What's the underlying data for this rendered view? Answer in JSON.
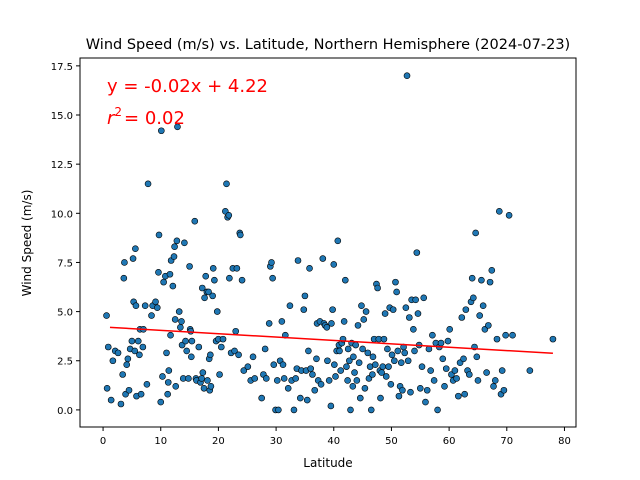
{
  "chart_data": {
    "type": "scatter",
    "title": "Wind Speed (m/s) vs. Latitude, Northern Hemisphere (2024-07-23)",
    "xlabel": "Latitude",
    "ylabel": "Wind Speed (m/s)",
    "xlim": [
      -4,
      82
    ],
    "ylim": [
      -0.87,
      17.9
    ],
    "x_ticks": [
      0,
      10,
      20,
      30,
      40,
      50,
      60,
      70,
      80
    ],
    "y_ticks": [
      0.0,
      2.5,
      5.0,
      7.5,
      10.0,
      12.5,
      15.0,
      17.5
    ],
    "x_tick_labels": [
      "0",
      "10",
      "20",
      "30",
      "40",
      "50",
      "60",
      "70",
      "80"
    ],
    "y_tick_labels": [
      "0.0",
      "2.5",
      "5.0",
      "7.5",
      "10.0",
      "12.5",
      "15.0",
      "17.5"
    ],
    "grid": false,
    "point_color": "#1f77b4",
    "point_edge_color": "#000000",
    "line_color": "#ff0000",
    "regression": {
      "equation": "y = -0.02x + 4.22",
      "r2_label": "r",
      "r2_sup": "2",
      "r2_value": "= 0.02",
      "slope": -0.0172,
      "intercept": 4.22,
      "x_range": [
        1.2,
        78.0
      ]
    },
    "points": [
      [
        0.6,
        4.8
      ],
      [
        0.7,
        1.1
      ],
      [
        0.9,
        3.2
      ],
      [
        1.4,
        0.5
      ],
      [
        1.7,
        2.5
      ],
      [
        2.1,
        3.0
      ],
      [
        2.6,
        2.9
      ],
      [
        3.1,
        0.3
      ],
      [
        3.4,
        1.8
      ],
      [
        3.6,
        6.7
      ],
      [
        3.7,
        7.5
      ],
      [
        3.9,
        0.8
      ],
      [
        4.1,
        2.3
      ],
      [
        4.3,
        2.6
      ],
      [
        4.5,
        1.0
      ],
      [
        4.7,
        3.1
      ],
      [
        5.0,
        3.5
      ],
      [
        5.2,
        7.7
      ],
      [
        5.3,
        5.5
      ],
      [
        5.5,
        3.0
      ],
      [
        5.6,
        8.2
      ],
      [
        5.7,
        5.3
      ],
      [
        5.8,
        0.7
      ],
      [
        6.1,
        3.5
      ],
      [
        6.3,
        2.8
      ],
      [
        6.4,
        4.1
      ],
      [
        6.6,
        0.8
      ],
      [
        6.9,
        3.2
      ],
      [
        7.0,
        4.1
      ],
      [
        7.3,
        5.3
      ],
      [
        7.6,
        1.3
      ],
      [
        7.8,
        11.5
      ],
      [
        8.4,
        4.8
      ],
      [
        8.6,
        5.3
      ],
      [
        9.1,
        5.5
      ],
      [
        9.4,
        5.2
      ],
      [
        9.6,
        7.0
      ],
      [
        9.7,
        8.9
      ],
      [
        10.0,
        0.4
      ],
      [
        10.1,
        14.2
      ],
      [
        10.3,
        1.7
      ],
      [
        10.5,
        6.5
      ],
      [
        10.8,
        6.8
      ],
      [
        11.0,
        2.9
      ],
      [
        11.2,
        0.8
      ],
      [
        11.3,
        1.4
      ],
      [
        11.4,
        2.0
      ],
      [
        11.6,
        6.9
      ],
      [
        11.7,
        3.8
      ],
      [
        11.8,
        7.6
      ],
      [
        12.1,
        6.3
      ],
      [
        12.3,
        7.8
      ],
      [
        12.4,
        8.3
      ],
      [
        12.5,
        4.6
      ],
      [
        12.6,
        1.2
      ],
      [
        12.8,
        8.6
      ],
      [
        12.9,
        14.4
      ],
      [
        13.2,
        5.0
      ],
      [
        13.4,
        4.2
      ],
      [
        13.6,
        4.5
      ],
      [
        13.7,
        3.3
      ],
      [
        13.9,
        1.6
      ],
      [
        14.1,
        8.5
      ],
      [
        14.3,
        3.5
      ],
      [
        14.5,
        3.0
      ],
      [
        14.8,
        1.6
      ],
      [
        15.0,
        7.3
      ],
      [
        15.1,
        4.1
      ],
      [
        15.2,
        4.0
      ],
      [
        15.3,
        2.7
      ],
      [
        15.4,
        3.5
      ],
      [
        15.9,
        9.6
      ],
      [
        16.1,
        1.6
      ],
      [
        16.2,
        1.5
      ],
      [
        16.6,
        3.2
      ],
      [
        16.9,
        1.4
      ],
      [
        17.1,
        1.6
      ],
      [
        17.2,
        6.2
      ],
      [
        17.3,
        1.9
      ],
      [
        17.5,
        1.1
      ],
      [
        17.6,
        5.7
      ],
      [
        17.8,
        6.8
      ],
      [
        18.0,
        6.0
      ],
      [
        18.1,
        1.5
      ],
      [
        18.3,
        6.0
      ],
      [
        18.4,
        2.6
      ],
      [
        18.5,
        1.0
      ],
      [
        18.6,
        2.8
      ],
      [
        18.7,
        1.2
      ],
      [
        19.0,
        5.8
      ],
      [
        19.1,
        7.2
      ],
      [
        19.3,
        6.6
      ],
      [
        19.6,
        3.5
      ],
      [
        19.8,
        5.0
      ],
      [
        20.0,
        3.6
      ],
      [
        20.2,
        1.8
      ],
      [
        20.5,
        3.2
      ],
      [
        20.8,
        3.6
      ],
      [
        21.2,
        10.1
      ],
      [
        21.4,
        11.5
      ],
      [
        21.6,
        9.8
      ],
      [
        21.8,
        9.9
      ],
      [
        21.9,
        6.7
      ],
      [
        22.2,
        2.9
      ],
      [
        22.5,
        7.2
      ],
      [
        22.8,
        3.0
      ],
      [
        23.0,
        4.0
      ],
      [
        23.2,
        7.2
      ],
      [
        23.5,
        2.8
      ],
      [
        23.7,
        9.0
      ],
      [
        23.8,
        8.9
      ],
      [
        24.1,
        6.6
      ],
      [
        24.4,
        2.0
      ],
      [
        25.1,
        2.2
      ],
      [
        25.6,
        1.5
      ],
      [
        26.0,
        2.7
      ],
      [
        26.3,
        1.6
      ],
      [
        27.5,
        0.6
      ],
      [
        27.8,
        1.8
      ],
      [
        28.1,
        3.1
      ],
      [
        28.3,
        1.6
      ],
      [
        28.8,
        4.4
      ],
      [
        29.0,
        7.3
      ],
      [
        29.2,
        7.5
      ],
      [
        29.4,
        6.7
      ],
      [
        29.6,
        2.3
      ],
      [
        29.9,
        0.0
      ],
      [
        30.2,
        1.5
      ],
      [
        30.4,
        0.0
      ],
      [
        30.7,
        2.5
      ],
      [
        31.0,
        4.5
      ],
      [
        31.2,
        2.3
      ],
      [
        31.4,
        1.6
      ],
      [
        31.6,
        3.8
      ],
      [
        32.1,
        1.1
      ],
      [
        32.4,
        5.3
      ],
      [
        32.7,
        1.5
      ],
      [
        33.1,
        0.0
      ],
      [
        33.4,
        1.6
      ],
      [
        33.6,
        2.1
      ],
      [
        33.8,
        7.6
      ],
      [
        34.2,
        0.6
      ],
      [
        34.4,
        2.0
      ],
      [
        34.8,
        5.1
      ],
      [
        35.0,
        5.8
      ],
      [
        35.2,
        2.0
      ],
      [
        35.4,
        0.5
      ],
      [
        35.6,
        3.0
      ],
      [
        35.8,
        7.2
      ],
      [
        36.0,
        2.1
      ],
      [
        36.3,
        1.8
      ],
      [
        36.7,
        1.0
      ],
      [
        37.0,
        2.6
      ],
      [
        37.1,
        4.4
      ],
      [
        37.3,
        1.5
      ],
      [
        37.6,
        4.5
      ],
      [
        37.8,
        1.3
      ],
      [
        38.1,
        7.7
      ],
      [
        38.3,
        4.4
      ],
      [
        38.5,
        4.3
      ],
      [
        38.8,
        4.2
      ],
      [
        38.9,
        2.5
      ],
      [
        39.2,
        1.5
      ],
      [
        39.5,
        0.2
      ],
      [
        39.6,
        4.4
      ],
      [
        39.8,
        5.1
      ],
      [
        40.0,
        7.4
      ],
      [
        40.1,
        2.3
      ],
      [
        40.3,
        1.7
      ],
      [
        40.5,
        3.0
      ],
      [
        40.7,
        8.6
      ],
      [
        40.9,
        3.3
      ],
      [
        41.0,
        3.0
      ],
      [
        41.2,
        2.0
      ],
      [
        41.4,
        3.4
      ],
      [
        41.6,
        3.6
      ],
      [
        41.8,
        4.5
      ],
      [
        42.0,
        6.6
      ],
      [
        42.2,
        2.2
      ],
      [
        42.4,
        1.5
      ],
      [
        42.5,
        3.1
      ],
      [
        42.7,
        2.5
      ],
      [
        42.9,
        0.0
      ],
      [
        43.1,
        3.4
      ],
      [
        43.3,
        1.2
      ],
      [
        43.4,
        2.7
      ],
      [
        43.6,
        1.9
      ],
      [
        43.8,
        3.3
      ],
      [
        44.0,
        1.5
      ],
      [
        44.2,
        4.3
      ],
      [
        44.4,
        2.4
      ],
      [
        44.6,
        0.6
      ],
      [
        44.8,
        5.3
      ],
      [
        45.0,
        3.1
      ],
      [
        45.2,
        4.6
      ],
      [
        45.4,
        1.1
      ],
      [
        45.6,
        5.0
      ],
      [
        45.9,
        2.9
      ],
      [
        46.1,
        1.6
      ],
      [
        46.3,
        2.2
      ],
      [
        46.5,
        0.0
      ],
      [
        46.7,
        1.8
      ],
      [
        46.8,
        2.7
      ],
      [
        47.0,
        3.6
      ],
      [
        47.2,
        2.3
      ],
      [
        47.4,
        6.4
      ],
      [
        47.6,
        6.2
      ],
      [
        47.8,
        3.6
      ],
      [
        48.0,
        2.0
      ],
      [
        48.1,
        0.6
      ],
      [
        48.3,
        1.9
      ],
      [
        48.5,
        2.2
      ],
      [
        48.7,
        3.6
      ],
      [
        48.9,
        4.9
      ],
      [
        49.1,
        1.7
      ],
      [
        49.3,
        3.1
      ],
      [
        49.5,
        2.2
      ],
      [
        49.7,
        5.2
      ],
      [
        49.9,
        1.3
      ],
      [
        50.1,
        2.8
      ],
      [
        50.3,
        5.1
      ],
      [
        50.5,
        2.5
      ],
      [
        50.7,
        6.5
      ],
      [
        50.9,
        6.0
      ],
      [
        51.1,
        3.0
      ],
      [
        51.3,
        0.7
      ],
      [
        51.5,
        1.2
      ],
      [
        51.7,
        2.4
      ],
      [
        51.9,
        1.0
      ],
      [
        52.1,
        3.2
      ],
      [
        52.3,
        2.9
      ],
      [
        52.5,
        5.2
      ],
      [
        52.7,
        17.0
      ],
      [
        52.9,
        2.5
      ],
      [
        53.1,
        4.7
      ],
      [
        53.3,
        0.9
      ],
      [
        53.5,
        5.6
      ],
      [
        53.8,
        4.1
      ],
      [
        54.0,
        3.0
      ],
      [
        54.2,
        5.6
      ],
      [
        54.4,
        8.0
      ],
      [
        54.6,
        4.9
      ],
      [
        54.8,
        3.3
      ],
      [
        55.0,
        1.1
      ],
      [
        55.3,
        2.2
      ],
      [
        55.6,
        5.7
      ],
      [
        55.9,
        0.4
      ],
      [
        56.2,
        1.0
      ],
      [
        56.5,
        3.1
      ],
      [
        56.8,
        2.0
      ],
      [
        57.1,
        3.8
      ],
      [
        57.4,
        1.5
      ],
      [
        57.7,
        3.4
      ],
      [
        58.0,
        0.0
      ],
      [
        58.3,
        3.2
      ],
      [
        58.6,
        3.4
      ],
      [
        58.9,
        2.6
      ],
      [
        59.2,
        1.2
      ],
      [
        59.5,
        2.1
      ],
      [
        59.8,
        3.5
      ],
      [
        60.1,
        4.1
      ],
      [
        60.4,
        1.8
      ],
      [
        60.7,
        1.5
      ],
      [
        61.0,
        2.0
      ],
      [
        61.3,
        1.6
      ],
      [
        61.6,
        0.7
      ],
      [
        61.9,
        2.4
      ],
      [
        62.2,
        4.7
      ],
      [
        62.5,
        2.6
      ],
      [
        62.7,
        0.8
      ],
      [
        62.9,
        5.1
      ],
      [
        63.2,
        2.0
      ],
      [
        63.5,
        1.8
      ],
      [
        63.8,
        5.5
      ],
      [
        64.0,
        6.7
      ],
      [
        64.2,
        5.7
      ],
      [
        64.4,
        3.2
      ],
      [
        64.6,
        9.0
      ],
      [
        64.8,
        2.7
      ],
      [
        65.0,
        1.5
      ],
      [
        65.3,
        4.8
      ],
      [
        65.6,
        6.6
      ],
      [
        65.9,
        5.3
      ],
      [
        66.2,
        4.1
      ],
      [
        66.5,
        1.9
      ],
      [
        66.8,
        4.3
      ],
      [
        67.1,
        6.5
      ],
      [
        67.4,
        7.1
      ],
      [
        67.7,
        1.2
      ],
      [
        68.0,
        1.5
      ],
      [
        68.3,
        3.6
      ],
      [
        68.7,
        10.1
      ],
      [
        69.0,
        0.8
      ],
      [
        69.2,
        2.0
      ],
      [
        69.5,
        1.0
      ],
      [
        69.8,
        3.8
      ],
      [
        70.4,
        9.9
      ],
      [
        71.0,
        3.8
      ],
      [
        74.0,
        2.0
      ],
      [
        78.0,
        3.6
      ]
    ]
  }
}
